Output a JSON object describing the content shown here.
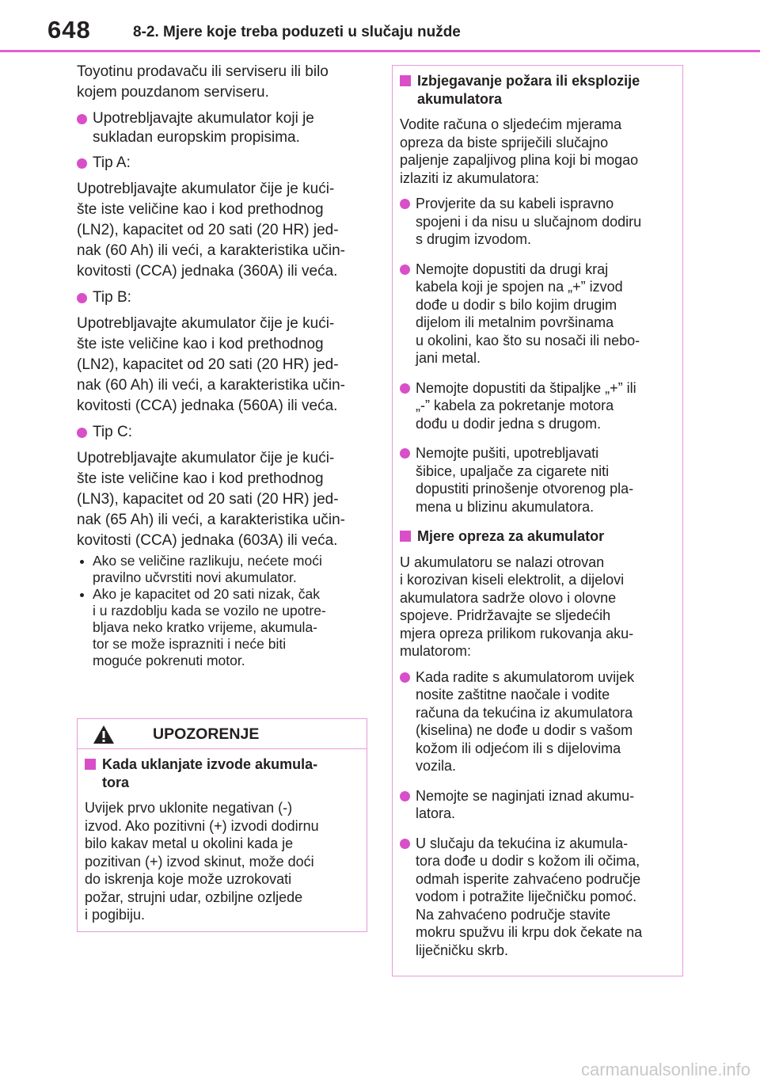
{
  "header": {
    "page_number": "648",
    "section_title": "8-2. Mjere koje treba poduzeti u slučaju nužde"
  },
  "left_column": {
    "intro": "Toyotinu prodavaču ili serviseru ili bilo\nkojem pouzdanom serviseru.",
    "bullets": [
      {
        "text": "Upotrebljavajte akumulator koji je\nsukladan europskim propisima."
      },
      {
        "text": "Tip A:",
        "body": "Upotrebljavajte akumulator čije je kući-\nšte iste veličine kao i kod prethodnog\n(LN2), kapacitet od 20 sati (20 HR) jed-\nnak (60 Ah) ili veći, a karakteristika učin-\nkovitosti (CCA) jednaka (360A) ili veća."
      },
      {
        "text": "Tip B:",
        "body": "Upotrebljavajte akumulator čije je kući-\nšte iste veličine kao i kod prethodnog\n(LN2), kapacitet od 20 sati (20 HR) jed-\nnak (60 Ah) ili veći, a karakteristika učin-\nkovitosti (CCA) jednaka (560A) ili veća."
      },
      {
        "text": "Tip C:",
        "body": "Upotrebljavajte akumulator čije je kući-\nšte iste veličine kao i kod prethodnog\n(LN3), kapacitet od 20 sati (20 HR) jed-\nnak (65 Ah) ili veći, a karakteristika učin-\nkovitosti (CCA) jednaka (603A) ili veća."
      }
    ],
    "notes": [
      "Ako se veličine razlikuju, nećete moći\npravilno učvrstiti novi akumulator.",
      "Ako je kapacitet od 20 sati nizak, čak\ni u razdoblju kada se vozilo ne upotre-\nbljava neko kratko vrijeme, akumula-\ntor se može isprazniti i neće biti\nmoguće pokrenuti motor."
    ]
  },
  "warning": {
    "title": "UPOZORENJE",
    "heading": "Kada uklanjate izvode akumula-\ntora",
    "body": "Uvijek prvo uklonite negativan (-)\nizvod. Ako pozitivni (+) izvodi dodirnu\nbilo kakav metal u okolini kada je\npozitivan (+) izvod skinut, može doći\ndo iskrenja koje može uzrokovati\npožar, strujni udar, ozbiljne ozljede\ni pogibiju."
  },
  "right_box": {
    "sections": [
      {
        "heading": "Izbjegavanje požara ili eksplozije\nakumulatora",
        "intro": "Vodite računa o sljedećim mjerama\nopreza da biste spriječili slučajno\npaljenje zapaljivog plina koji bi mogao\nizlaziti iz akumulatora:",
        "bullets": [
          "Provjerite da su kabeli ispravno\nspojeni i da nisu u slučajnom dodiru\ns drugim izvodom.",
          "Nemojte dopustiti da drugi kraj\nkabela koji je spojen na „+” izvod\ndođe u dodir s bilo kojim drugim\ndijelom ili metalnim površinama\nu okolini, kao što su nosači ili nebo-\njani metal.",
          "Nemojte dopustiti da štipaljke „+” ili\n„-” kabela za pokretanje motora\ndođu u dodir jedna s drugom.",
          "Nemojte pušiti, upotrebljavati\nšibice, upaljače za cigarete niti\ndopustiti prinošenje otvorenog pla-\nmena u blizinu akumulatora."
        ]
      },
      {
        "heading": "Mjere opreza za akumulator",
        "intro": "U akumulatoru se nalazi otrovan\ni korozivan kiseli elektrolit, a dijelovi\nakumulatora sadrže olovo i olovne\nspojeve. Pridržavajte se sljedećih\nmjera opreza prilikom rukovanja aku-\nmulatorom:",
        "bullets": [
          "Kada radite s akumulatorom uvijek\nnosite zaštitne naočale i vodite\nračuna da tekućina iz akumulatora\n(kiselina) ne dođe u dodir s vašom\nkožom ili odjećom ili s dijelovima\nvozila.",
          "Nemojte se naginjati iznad akumu-\nlatora.",
          "U slučaju da tekućina iz akumula-\ntora dođe u dodir s kožom ili očima,\nodmah isperite zahvaćeno područje\nvodom i potražite liječničku pomoć.\nNa zahvaćeno područje stavite\nmokru spužvu ili krpu dok čekate na\nliječničku skrb."
        ]
      }
    ]
  },
  "footer": {
    "watermark": "carmanualsonline.info"
  }
}
